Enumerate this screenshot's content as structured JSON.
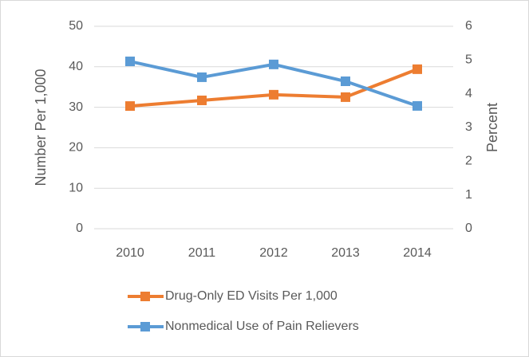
{
  "chart_data": {
    "type": "line",
    "categories": [
      "2010",
      "2011",
      "2012",
      "2013",
      "2014"
    ],
    "y_label": "Number Per 1,000",
    "y2_label": "Percent",
    "series": [
      {
        "name": "Drug-Only ED Visits Per 1,000",
        "color": "#ed7d31",
        "values": [
          30.3,
          31.7,
          33.1,
          32.5,
          39.4
        ]
      },
      {
        "name": "Nonmedical Use of Pain Relievers",
        "color": "#5b9bd5",
        "axis": "y2",
        "values": [
          4.96,
          4.49,
          4.87,
          4.37,
          3.64
        ]
      }
    ],
    "ylim": [
      0,
      50
    ],
    "yticks": [
      0,
      10,
      20,
      30,
      40,
      50
    ],
    "y2lim": [
      0,
      6
    ],
    "y2ticks": [
      0,
      1,
      2,
      3,
      4,
      5,
      6
    ],
    "grid": true
  }
}
